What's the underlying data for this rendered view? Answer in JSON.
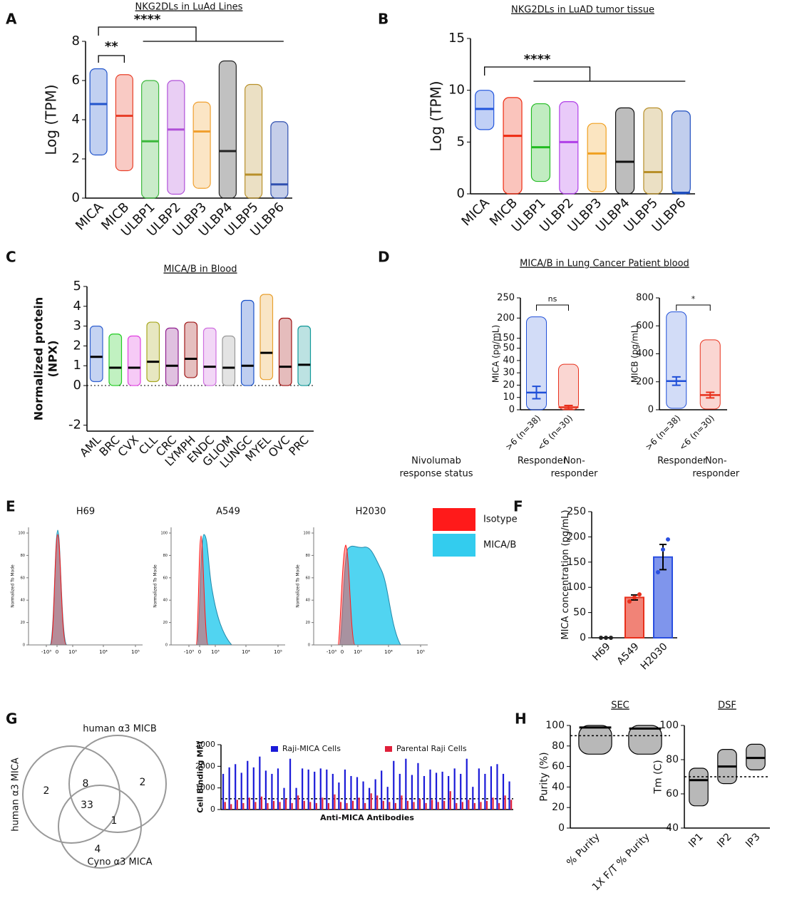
{
  "panels": [
    "A",
    "B",
    "C",
    "D",
    "E",
    "F",
    "G",
    "H"
  ],
  "chart_data": [
    {
      "type": "dot",
      "title": "NKG2DLs in LuAd Lines",
      "ylabel": "Log (TPM)",
      "categories": [
        "MICA",
        "MICB",
        "ULBP1",
        "ULBP2",
        "ULBP3",
        "ULBP4",
        "ULBP5",
        "ULBP6"
      ],
      "colors": [
        "#2255cc",
        "#e8402a",
        "#3cb83c",
        "#b050d8",
        "#f0a030",
        "#222222",
        "#b8902a",
        "#3050b0"
      ],
      "values": [
        4.8,
        4.2,
        2.9,
        3.5,
        3.4,
        2.4,
        1.2,
        0.7
      ],
      "ranges": [
        [
          2.2,
          6.6
        ],
        [
          1.4,
          6.3
        ],
        [
          0,
          6.0
        ],
        [
          0.2,
          6.0
        ],
        [
          0.5,
          4.9
        ],
        [
          0,
          7.0
        ],
        [
          0,
          5.8
        ],
        [
          0,
          3.9
        ]
      ],
      "ylim": [
        0,
        8
      ],
      "yticks": [
        0,
        2,
        4,
        6,
        8
      ],
      "annotations": [
        "**",
        "****"
      ]
    },
    {
      "type": "dot",
      "title": "NKG2DLs in LuAD tumor tissue",
      "ylabel": "Log (TPM)",
      "categories": [
        "MICA",
        "MICB",
        "ULBP1",
        "ULBP2",
        "ULBP3",
        "ULBP4",
        "ULBP5",
        "ULBP6"
      ],
      "colors": [
        "#2255dd",
        "#ee2a10",
        "#22bb22",
        "#b040e8",
        "#f0a020",
        "#111111",
        "#b8902a",
        "#2050c0"
      ],
      "values": [
        8.2,
        5.6,
        4.5,
        5.0,
        3.9,
        3.1,
        2.1,
        0.1
      ],
      "ranges": [
        [
          6.2,
          10.0
        ],
        [
          0,
          9.3
        ],
        [
          1.2,
          8.7
        ],
        [
          0,
          8.9
        ],
        [
          0.2,
          6.8
        ],
        [
          0,
          8.3
        ],
        [
          0,
          8.3
        ],
        [
          0,
          8.0
        ]
      ],
      "ylim": [
        0,
        15
      ],
      "yticks": [
        0,
        5,
        10,
        15
      ],
      "annotations": [
        "****"
      ]
    },
    {
      "type": "dot",
      "title": "MICA/B in Blood",
      "ylabel": [
        "Normalized protein",
        "(NPX)"
      ],
      "categories": [
        "AML",
        "BRC",
        "CVX",
        "CLL",
        "CRC",
        "LYMPH",
        "ENDC",
        "GLIOM",
        "LUNGC",
        "MYEL",
        "OVC",
        "PRC"
      ],
      "colors": [
        "#3060d0",
        "#22cc22",
        "#e040e0",
        "#a8a820",
        "#902090",
        "#a01818",
        "#d070e0",
        "#999999",
        "#1850c8",
        "#e8a030",
        "#a01010",
        "#109898"
      ],
      "median_color": "#000000",
      "values": [
        1.45,
        0.9,
        0.9,
        1.2,
        1.0,
        1.35,
        0.95,
        0.9,
        1.0,
        1.65,
        0.95,
        1.05
      ],
      "ranges": [
        [
          0.2,
          3.0
        ],
        [
          0,
          2.6
        ],
        [
          0,
          2.5
        ],
        [
          0.2,
          3.2
        ],
        [
          0,
          2.9
        ],
        [
          0.4,
          3.2
        ],
        [
          0,
          2.9
        ],
        [
          0,
          2.5
        ],
        [
          0,
          4.3
        ],
        [
          0.3,
          4.6
        ],
        [
          0,
          3.4
        ],
        [
          0,
          3.0
        ]
      ],
      "ylim": [
        -2.3,
        5
      ],
      "yticks": [
        -2,
        0,
        1,
        2,
        3,
        4,
        5
      ],
      "zero_line": true
    },
    {
      "type": "meanerr",
      "title": "MICA/B in Lung Cancer Patient blood",
      "ylabel": "MICA (pg/mL)",
      "categories": [
        ">6 (n=38)",
        "<6 (n=30)"
      ],
      "colors": [
        "#1f4fd8",
        "#e8301c"
      ],
      "values": [
        14,
        2
      ],
      "errors": [
        5,
        1.5
      ],
      "ranges": [
        [
          0,
          203
        ],
        [
          0,
          37
        ]
      ],
      "ylim": [
        0,
        250
      ],
      "ybreak": [
        50,
        150
      ],
      "yticks": [
        0,
        10,
        20,
        30,
        40,
        50,
        150,
        200,
        250
      ],
      "annotations": [
        "ns"
      ],
      "group_labels": [
        [
          "Responder"
        ],
        [
          "Non-",
          "responder"
        ]
      ],
      "status_label": [
        "Nivolumab",
        "response status"
      ]
    },
    {
      "type": "meanerr",
      "ylabel": "MICB (pg/mL)",
      "categories": [
        ">6 (n=38)",
        "<6 (n=30)"
      ],
      "colors": [
        "#1f4fd8",
        "#e8301c"
      ],
      "values": [
        205,
        105
      ],
      "errors": [
        30,
        20
      ],
      "ranges": [
        [
          10,
          700
        ],
        [
          5,
          500
        ]
      ],
      "ylim": [
        0,
        800
      ],
      "yticks": [
        0,
        200,
        400,
        600,
        800
      ],
      "annotations": [
        "*"
      ],
      "group_labels": [
        [
          "Responder"
        ],
        [
          "Non-",
          "responder"
        ]
      ]
    },
    {
      "type": "flow",
      "ylabel": "Normalized To Mode",
      "samples": [
        "H69",
        "A549",
        "H2030"
      ],
      "series": [
        {
          "name": "Isotype",
          "color": "#ff1a1a"
        },
        {
          "name": "MICA/B",
          "color": "#33ccee"
        }
      ],
      "yticks": [
        0,
        20,
        40,
        60,
        80,
        100
      ],
      "xticks": [
        {
          "value": -1000,
          "label": "-10³"
        },
        {
          "value": 0,
          "label": "0"
        },
        {
          "value": 1000,
          "label": "10³"
        },
        {
          "value": 10000,
          "label": "10⁴"
        },
        {
          "value": 100000,
          "label": "10⁵"
        }
      ]
    },
    {
      "type": "bar",
      "ylabel": "MICA concentration (pg/mL)",
      "categories": [
        "H69",
        "A549",
        "H2030"
      ],
      "colors": [
        "#222222",
        "#e8301c",
        "#2a4fe0"
      ],
      "values": [
        0,
        80,
        160
      ],
      "errors": [
        0,
        5,
        25
      ],
      "points": [
        [
          0,
          0,
          0
        ],
        [
          72,
          80,
          86
        ],
        [
          130,
          175,
          195
        ]
      ],
      "ylim": [
        0,
        250
      ],
      "yticks": [
        0,
        50,
        100,
        150,
        200,
        250
      ]
    },
    {
      "type": "groupbar",
      "ylabel": "Cell Binding MFI",
      "xlabel": "Anti-MICA Antibodies",
      "categories": [
        null,
        null,
        null,
        null,
        null,
        null,
        null,
        null,
        null,
        null,
        null,
        null,
        null,
        null,
        null,
        null,
        null,
        null,
        null,
        null,
        null,
        null,
        null,
        null,
        null,
        null,
        null,
        null,
        null,
        null,
        null,
        null,
        null,
        null,
        null,
        null,
        null,
        null,
        null,
        null,
        null,
        null,
        null,
        null,
        null,
        null,
        null,
        null
      ],
      "series": [
        {
          "name": "Raji-MICA Cells",
          "color": "#1a1ad8",
          "values": [
            1650,
            1950,
            2100,
            1700,
            2250,
            1950,
            2450,
            1800,
            1650,
            1900,
            1000,
            2350,
            1000,
            1900,
            1850,
            1750,
            1900,
            1850,
            1650,
            1250,
            1850,
            1550,
            1500,
            1300,
            1000,
            1400,
            1800,
            1050,
            2250,
            1650,
            2350,
            1600,
            2150,
            1550,
            1850,
            1700,
            1750,
            1550,
            1900,
            1650,
            2350,
            1050,
            1900,
            1650,
            2000,
            2100,
            1650,
            1300
          ]
        },
        {
          "name": "Parental Raji Cells",
          "color": "#e0203a",
          "values": [
            350,
            250,
            450,
            300,
            550,
            350,
            600,
            300,
            400,
            350,
            500,
            300,
            650,
            400,
            350,
            300,
            550,
            300,
            700,
            350,
            300,
            400,
            550,
            300,
            750,
            650,
            400,
            350,
            300,
            650,
            400,
            350,
            500,
            300,
            450,
            350,
            400,
            850,
            300,
            350,
            450,
            300,
            350,
            400,
            550,
            300,
            650,
            450
          ]
        }
      ],
      "threshold": 500,
      "ylim": [
        0,
        3000
      ],
      "yticks": [
        0,
        1000,
        2000,
        3000
      ]
    },
    {
      "type": "dot",
      "title": "SEC",
      "ylabel": "Purity (%)",
      "categories": [
        "% Purity",
        "1X F/T % Purity"
      ],
      "colors": [
        "#000000",
        "#000000"
      ],
      "values": [
        98,
        97
      ],
      "ranges": [
        [
          72,
          100
        ],
        [
          72,
          100
        ]
      ],
      "threshold": 90,
      "ylim": [
        0,
        100
      ],
      "yticks": [
        0,
        20,
        40,
        60,
        80,
        100
      ]
    },
    {
      "type": "dot",
      "title": "DSF",
      "ylabel": "Tm (C)",
      "categories": [
        "IP1",
        "IP2",
        "IP3"
      ],
      "colors": [
        "#000000",
        "#000000",
        "#000000"
      ],
      "values": [
        68,
        76,
        81
      ],
      "ranges": [
        [
          53,
          75
        ],
        [
          66,
          86
        ],
        [
          74,
          89
        ]
      ],
      "threshold": 70,
      "ylim": [
        40,
        100
      ],
      "yticks": [
        40,
        60,
        80,
        100
      ]
    }
  ],
  "venn": {
    "sets": [
      "human α3 MICA",
      "human α3 MICB",
      "Cyno α3 MICA"
    ],
    "counts": [
      2,
      8,
      2,
      33,
      1,
      4
    ]
  }
}
